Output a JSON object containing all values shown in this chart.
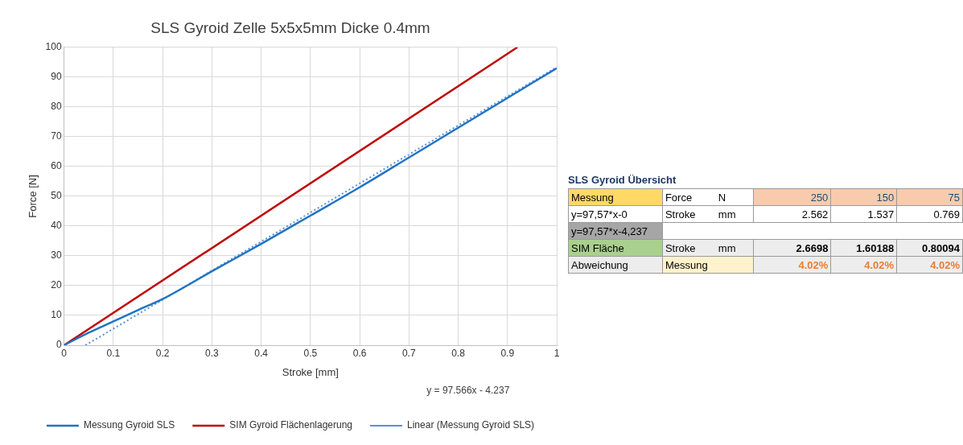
{
  "chart_data": [
    {
      "type": "line",
      "title": "SLS Gyroid Zelle 5x5x5mm Dicke 0.4mm",
      "xlabel": "Stroke [mm]",
      "ylabel": "Force [N]",
      "xlim": [
        0,
        1
      ],
      "xticks": [
        0,
        0.1,
        0.2,
        0.3,
        0.4,
        0.5,
        0.6,
        0.7,
        0.8,
        0.9,
        1
      ],
      "ylim": [
        0,
        100
      ],
      "yticks": [
        0,
        10,
        20,
        30,
        40,
        50,
        60,
        70,
        80,
        90,
        100
      ],
      "grid": true,
      "legend": "bottom",
      "marker": "none",
      "annotations": [
        "y = 97.566x - 4.237"
      ],
      "series": [
        {
          "name": "Messung Gyroid SLS",
          "color": "#1f74c4",
          "x": [
            0,
            0.05,
            0.1,
            0.15,
            0.2,
            0.3,
            0.4,
            0.5,
            0.6,
            0.7,
            0.8,
            0.9,
            1
          ],
          "values": [
            0,
            4.2,
            8,
            11.8,
            15.5,
            24.8,
            34,
            43.5,
            53,
            63,
            73,
            83,
            93
          ]
        },
        {
          "name": "SIM Gyroid Flächenlagerung",
          "color": "#c00000",
          "x": [
            0,
            0.92
          ],
          "values": [
            0,
            100
          ]
        },
        {
          "name": "Linear (Messung Gyroid SLS)",
          "color": "#5b8fd6",
          "line_style": "dotted",
          "x": [
            0.0434,
            1
          ],
          "values": [
            0,
            93.3
          ]
        }
      ]
    },
    {
      "type": "other",
      "title": "SLS Gyroid Übersicht",
      "annotations": [
        "Messung",
        "Force",
        "N",
        "250",
        "150",
        "75",
        "y=97,57*x-0",
        "Stroke",
        "mm",
        "2.562",
        "1.537",
        "0.769",
        "y=97,57*x-4,237",
        null,
        null,
        null,
        null,
        null,
        "SIM Fläche",
        "Stroke",
        "mm",
        "2.6698",
        "1.60188",
        "0.80094",
        "Abweichung",
        "Messung",
        null,
        "4.02%",
        "4.02%",
        "4.02%"
      ]
    }
  ]
}
